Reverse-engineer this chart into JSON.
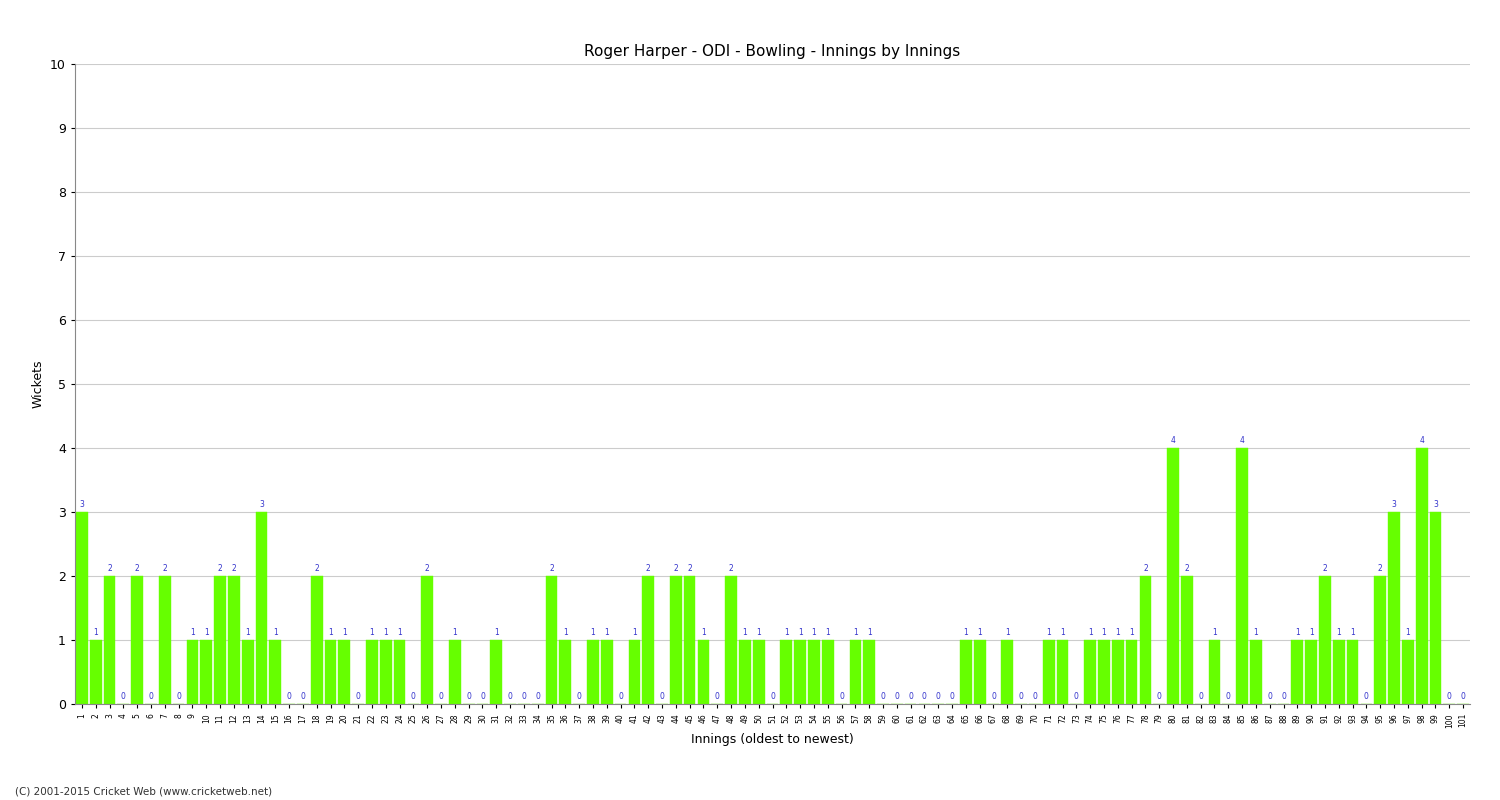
{
  "title": "Roger Harper - ODI - Bowling - Innings by Innings",
  "xlabel": "Innings (oldest to newest)",
  "ylabel": "Wickets",
  "ylim": [
    0,
    10
  ],
  "yticks": [
    0,
    1,
    2,
    3,
    4,
    5,
    6,
    7,
    8,
    9,
    10
  ],
  "bar_color": "#66ff00",
  "label_color": "#3333cc",
  "footer": "(C) 2001-2015 Cricket Web (www.cricketweb.net)",
  "values": [
    3,
    1,
    2,
    0,
    2,
    0,
    2,
    0,
    1,
    1,
    2,
    2,
    1,
    3,
    1,
    0,
    0,
    2,
    1,
    1,
    0,
    1,
    1,
    1,
    0,
    2,
    0,
    1,
    0,
    0,
    1,
    0,
    0,
    0,
    2,
    1,
    0,
    1,
    1,
    0,
    1,
    2,
    0,
    2,
    2,
    1,
    0,
    2,
    1,
    1,
    0,
    1,
    1,
    1,
    1,
    0,
    1,
    1,
    0,
    0,
    0,
    0,
    0,
    0,
    1,
    1,
    0,
    1,
    0,
    0,
    1,
    1,
    0,
    1,
    1,
    1,
    1,
    2,
    0,
    4,
    2,
    0,
    1,
    0,
    4,
    1,
    0,
    0,
    1,
    1,
    2,
    1,
    1,
    0,
    2,
    3,
    1,
    4,
    3,
    0,
    0
  ],
  "categories": [
    "1",
    "2",
    "3",
    "4",
    "5",
    "6",
    "7",
    "8",
    "9",
    "10",
    "11",
    "12",
    "13",
    "14",
    "15",
    "16",
    "17",
    "18",
    "19",
    "20",
    "21",
    "22",
    "23",
    "24",
    "25",
    "26",
    "27",
    "28",
    "29",
    "30",
    "31",
    "32",
    "33",
    "34",
    "35",
    "36",
    "37",
    "38",
    "39",
    "40",
    "41",
    "42",
    "43",
    "44",
    "45",
    "46",
    "47",
    "48",
    "49",
    "50",
    "51",
    "52",
    "53",
    "54",
    "55",
    "56",
    "57",
    "58",
    "59",
    "60",
    "61",
    "62",
    "63",
    "64",
    "65",
    "66",
    "67",
    "68",
    "69",
    "70",
    "71",
    "72",
    "73",
    "74",
    "75",
    "76",
    "77",
    "78",
    "79",
    "80",
    "81",
    "82",
    "83",
    "84",
    "85",
    "86",
    "87",
    "88",
    "89",
    "90",
    "91",
    "92",
    "93",
    "94",
    "95",
    "96",
    "97",
    "98",
    "99",
    "100",
    "101"
  ]
}
